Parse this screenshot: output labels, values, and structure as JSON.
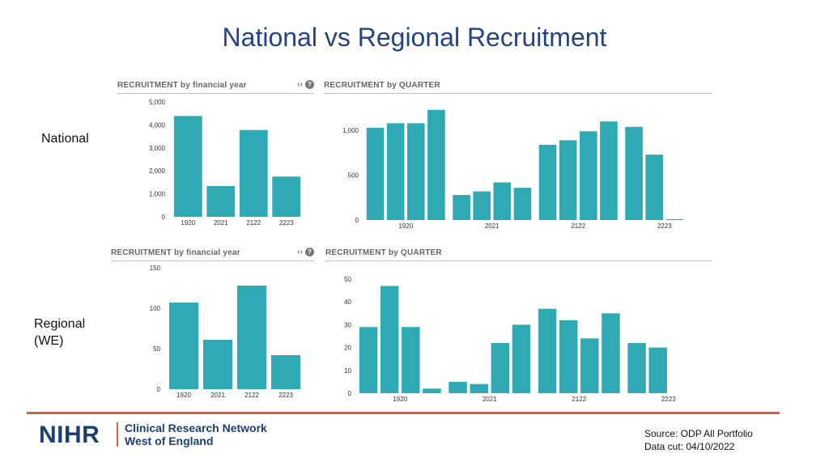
{
  "title": "National vs Regional Recruitment",
  "row_labels": {
    "national": "National",
    "regional_line1": "Regional",
    "regional_line2": "(WE)"
  },
  "panels": {
    "national_fy_title": "RECRUITMENT by financial year",
    "national_q_title": "RECRUITMENT by QUARTER",
    "regional_fy_title": "RECRUITMENT by financial year",
    "regional_q_title": "RECRUITMENT by QUARTER",
    "expand_glyph": "››",
    "help_glyph": "?"
  },
  "footer": {
    "logo_text": "NIHR",
    "network_line1": "Clinical Research Network",
    "network_line2": "West of England",
    "source_line1": "Source: ODP All Portfolio",
    "source_line2": "Data cut: 04/10/2022"
  },
  "colors": {
    "bar": "#2fa9b3",
    "title": "#27437f",
    "rule": "#d0604c"
  },
  "chart_data": [
    {
      "id": "national_fy",
      "type": "bar",
      "title": "RECRUITMENT by financial year",
      "categories": [
        "1920",
        "2021",
        "2122",
        "2223"
      ],
      "values": [
        4390,
        1340,
        3780,
        1750
      ],
      "ylim": [
        0,
        5000
      ],
      "yticks": [
        0,
        1000,
        2000,
        3000,
        4000,
        5000
      ],
      "ytick_labels": [
        "0",
        "1,000",
        "2,000",
        "3,000",
        "4,000",
        "5,000"
      ],
      "grid": false
    },
    {
      "id": "national_q",
      "type": "bar",
      "title": "RECRUITMENT by QUARTER",
      "quarters": [
        "1920 Q1",
        "1920 Q2",
        "1920 Q3",
        "1920 Q4",
        "2021 Q1",
        "2021 Q2",
        "2021 Q3",
        "2021 Q4",
        "2122 Q1",
        "2122 Q2",
        "2122 Q3",
        "2122 Q4",
        "2223 Q1",
        "2223 Q2",
        "2223 Q3"
      ],
      "values": [
        1030,
        1080,
        1080,
        1230,
        280,
        320,
        420,
        360,
        840,
        890,
        990,
        1100,
        1040,
        730,
        10
      ],
      "category_labels": [
        "1920",
        "2021",
        "2122",
        "2223"
      ],
      "ylim": [
        0,
        1300
      ],
      "yticks": [
        0,
        500,
        1000
      ],
      "ytick_labels": [
        "0",
        "500",
        "1,000"
      ],
      "grid": false
    },
    {
      "id": "regional_fy",
      "type": "bar",
      "title": "RECRUITMENT by financial year",
      "categories": [
        "1920",
        "2021",
        "2122",
        "2223"
      ],
      "values": [
        107,
        61,
        128,
        42
      ],
      "ylim": [
        0,
        150
      ],
      "yticks": [
        0,
        50,
        100,
        150
      ],
      "ytick_labels": [
        "0",
        "50",
        "100",
        "150"
      ],
      "grid": false
    },
    {
      "id": "regional_q",
      "type": "bar",
      "title": "RECRUITMENT by QUARTER",
      "quarters": [
        "1920 Q1",
        "1920 Q2",
        "1920 Q3",
        "1920 Q4",
        "2021 Q1",
        "2021 Q2",
        "2021 Q3",
        "2021 Q4",
        "2122 Q1",
        "2122 Q2",
        "2122 Q3",
        "2122 Q4",
        "2223 Q1",
        "2223 Q2"
      ],
      "values": [
        29,
        47,
        29,
        2,
        5,
        4,
        22,
        30,
        37,
        32,
        24,
        35,
        22,
        20
      ],
      "category_labels": [
        "1920",
        "2021",
        "2122",
        "2223"
      ],
      "ylim": [
        0,
        50
      ],
      "yticks": [
        0,
        10,
        20,
        30,
        40,
        50
      ],
      "ytick_labels": [
        "0",
        "10",
        "20",
        "30",
        "40",
        "50"
      ],
      "grid": false
    }
  ]
}
